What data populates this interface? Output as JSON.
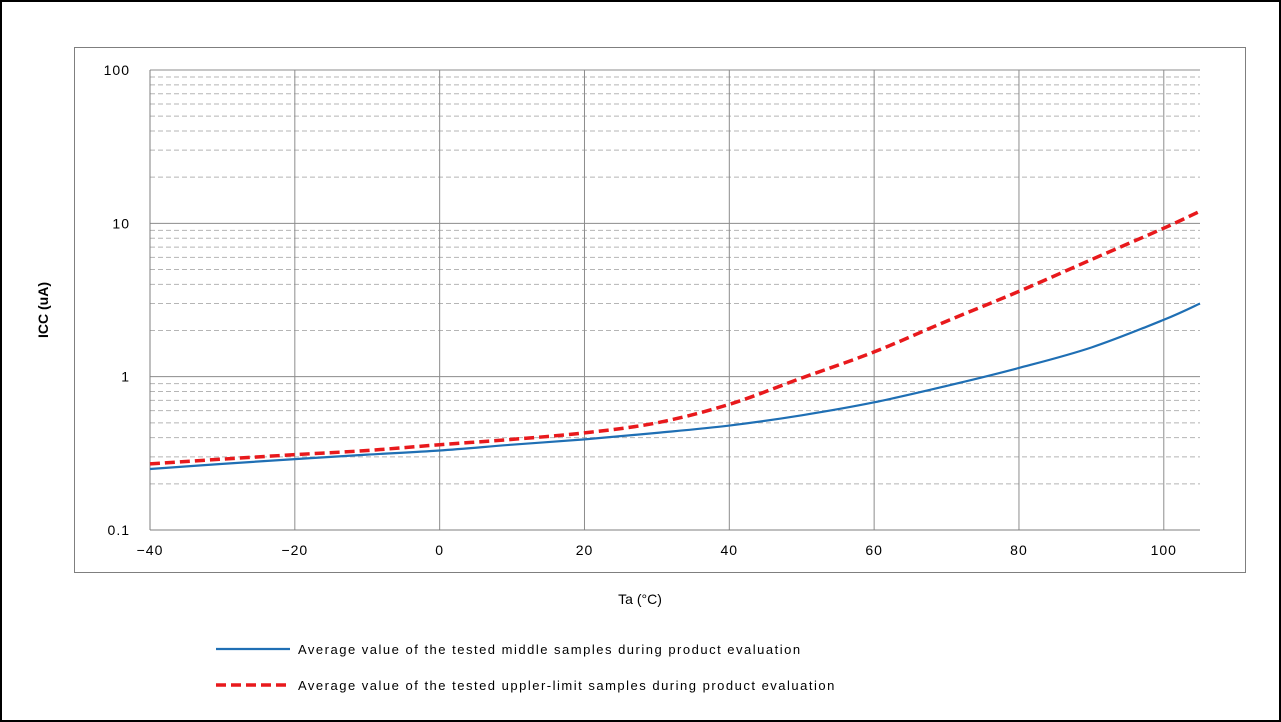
{
  "chart_data": {
    "type": "line",
    "xlabel": "Ta (°C)",
    "ylabel": "ICC (uA)",
    "xlim": [
      -40,
      105
    ],
    "ylim": [
      0.1,
      100
    ],
    "yscale": "log",
    "grid": true,
    "x_ticks": [
      "−40",
      "−20",
      "0",
      "20",
      "40",
      "60",
      "80",
      "100"
    ],
    "x_tick_values": [
      -40,
      -20,
      0,
      20,
      40,
      60,
      80,
      100
    ],
    "y_ticks": [
      "0.1",
      "1",
      "10",
      "100"
    ],
    "y_tick_values": [
      0.1,
      1,
      10,
      100
    ],
    "legend_position": "bottom",
    "series": [
      {
        "name": "Average value of the tested middle samples during product evaluation",
        "color": "#1f6fb4",
        "style": "solid",
        "x": [
          -40,
          -30,
          -20,
          -10,
          0,
          10,
          20,
          30,
          40,
          50,
          60,
          70,
          80,
          90,
          100,
          105
        ],
        "y": [
          0.25,
          0.27,
          0.29,
          0.31,
          0.33,
          0.36,
          0.39,
          0.43,
          0.48,
          0.56,
          0.68,
          0.87,
          1.14,
          1.55,
          2.35,
          3.0
        ]
      },
      {
        "name": "Average value of the tested uppler-limit samples during product evaluation",
        "color": "#e8191c",
        "style": "dashed",
        "x": [
          -40,
          -30,
          -20,
          -10,
          0,
          10,
          20,
          30,
          40,
          50,
          60,
          70,
          80,
          90,
          100,
          105
        ],
        "y": [
          0.27,
          0.29,
          0.31,
          0.33,
          0.36,
          0.39,
          0.43,
          0.5,
          0.66,
          0.98,
          1.45,
          2.3,
          3.6,
          5.8,
          9.3,
          12.0
        ]
      }
    ]
  }
}
